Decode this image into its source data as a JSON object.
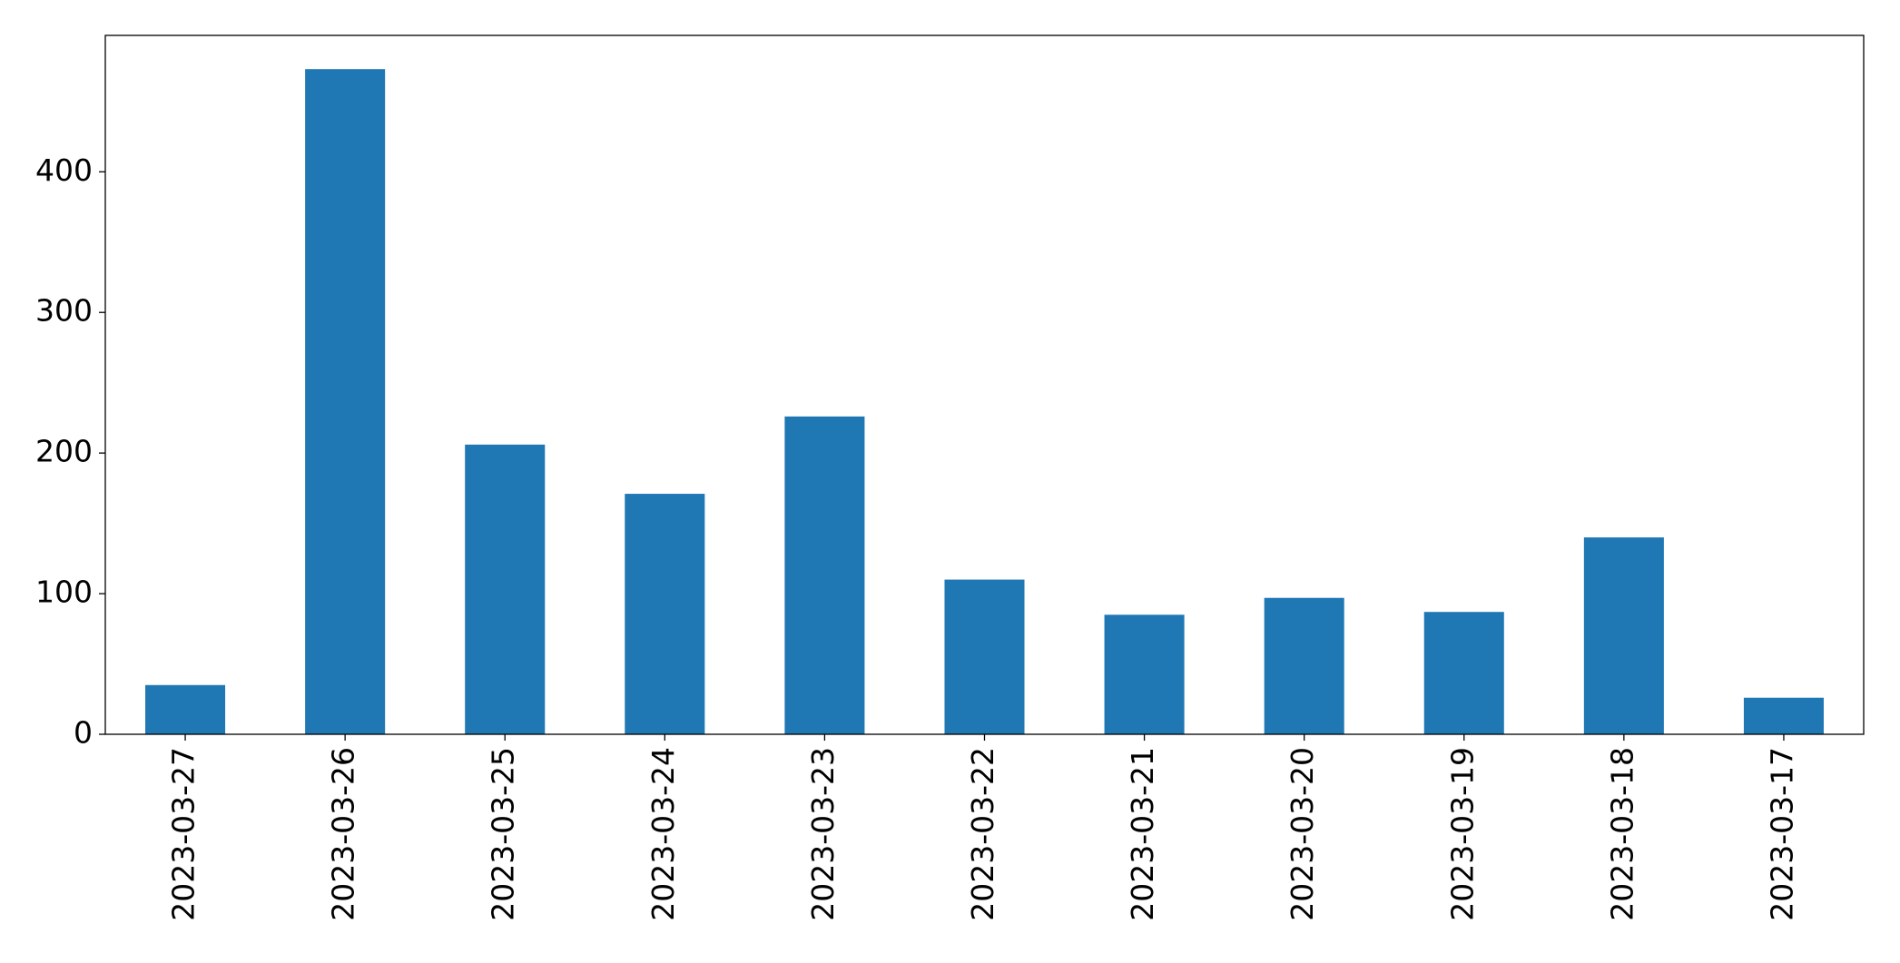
{
  "chart_data": {
    "type": "bar",
    "categories": [
      "2023-03-27",
      "2023-03-26",
      "2023-03-25",
      "2023-03-24",
      "2023-03-23",
      "2023-03-22",
      "2023-03-21",
      "2023-03-20",
      "2023-03-19",
      "2023-03-18",
      "2023-03-17"
    ],
    "values": [
      35,
      473,
      206,
      171,
      226,
      110,
      85,
      97,
      87,
      140,
      26
    ],
    "color": "#1f77b4",
    "ylim": [
      0,
      497
    ],
    "yticks": [
      0,
      100,
      200,
      300,
      400
    ],
    "grid": false
  }
}
